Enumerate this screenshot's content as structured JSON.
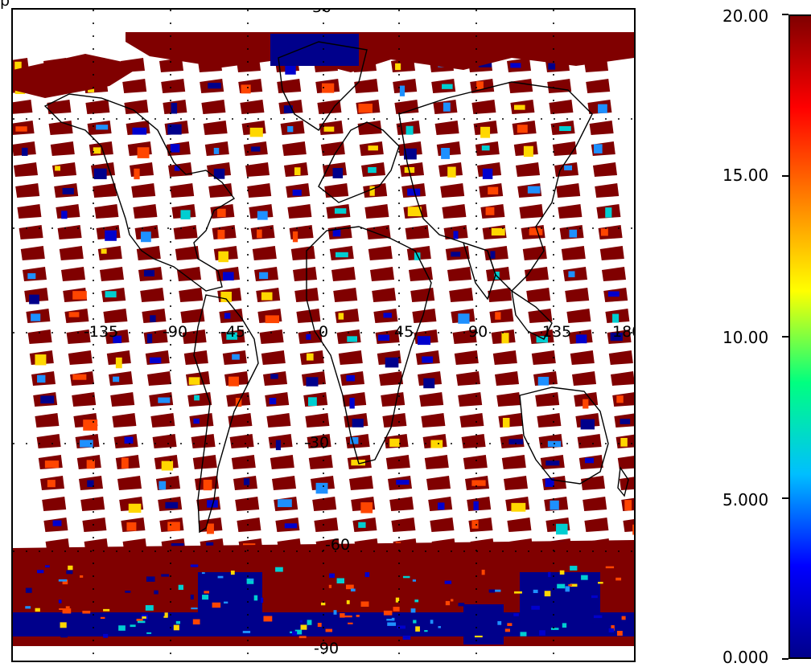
{
  "colors": {
    "fill_max": "#800000",
    "fill_min": "#00008b",
    "coast": "#000000",
    "colorbar_stops": [
      "#00008b",
      "#0000ff",
      "#00bfff",
      "#00ff80",
      "#ffff00",
      "#ff8000",
      "#ff0000",
      "#800000"
    ]
  },
  "map": {
    "projection": "cylindrical",
    "lon_labels": [
      "-135",
      "-90",
      "-45",
      "0",
      "45",
      "90",
      "135",
      "180"
    ],
    "lat_labels": [
      "30",
      "-30",
      "-60",
      "-90"
    ],
    "corner_label": "p"
  },
  "colorbar": {
    "tick_labels": [
      "20.00",
      "15.00",
      "10.00",
      "5.000",
      "0.000"
    ],
    "ticks": [
      20,
      15,
      10,
      5,
      0
    ],
    "range": [
      0,
      20
    ]
  }
}
